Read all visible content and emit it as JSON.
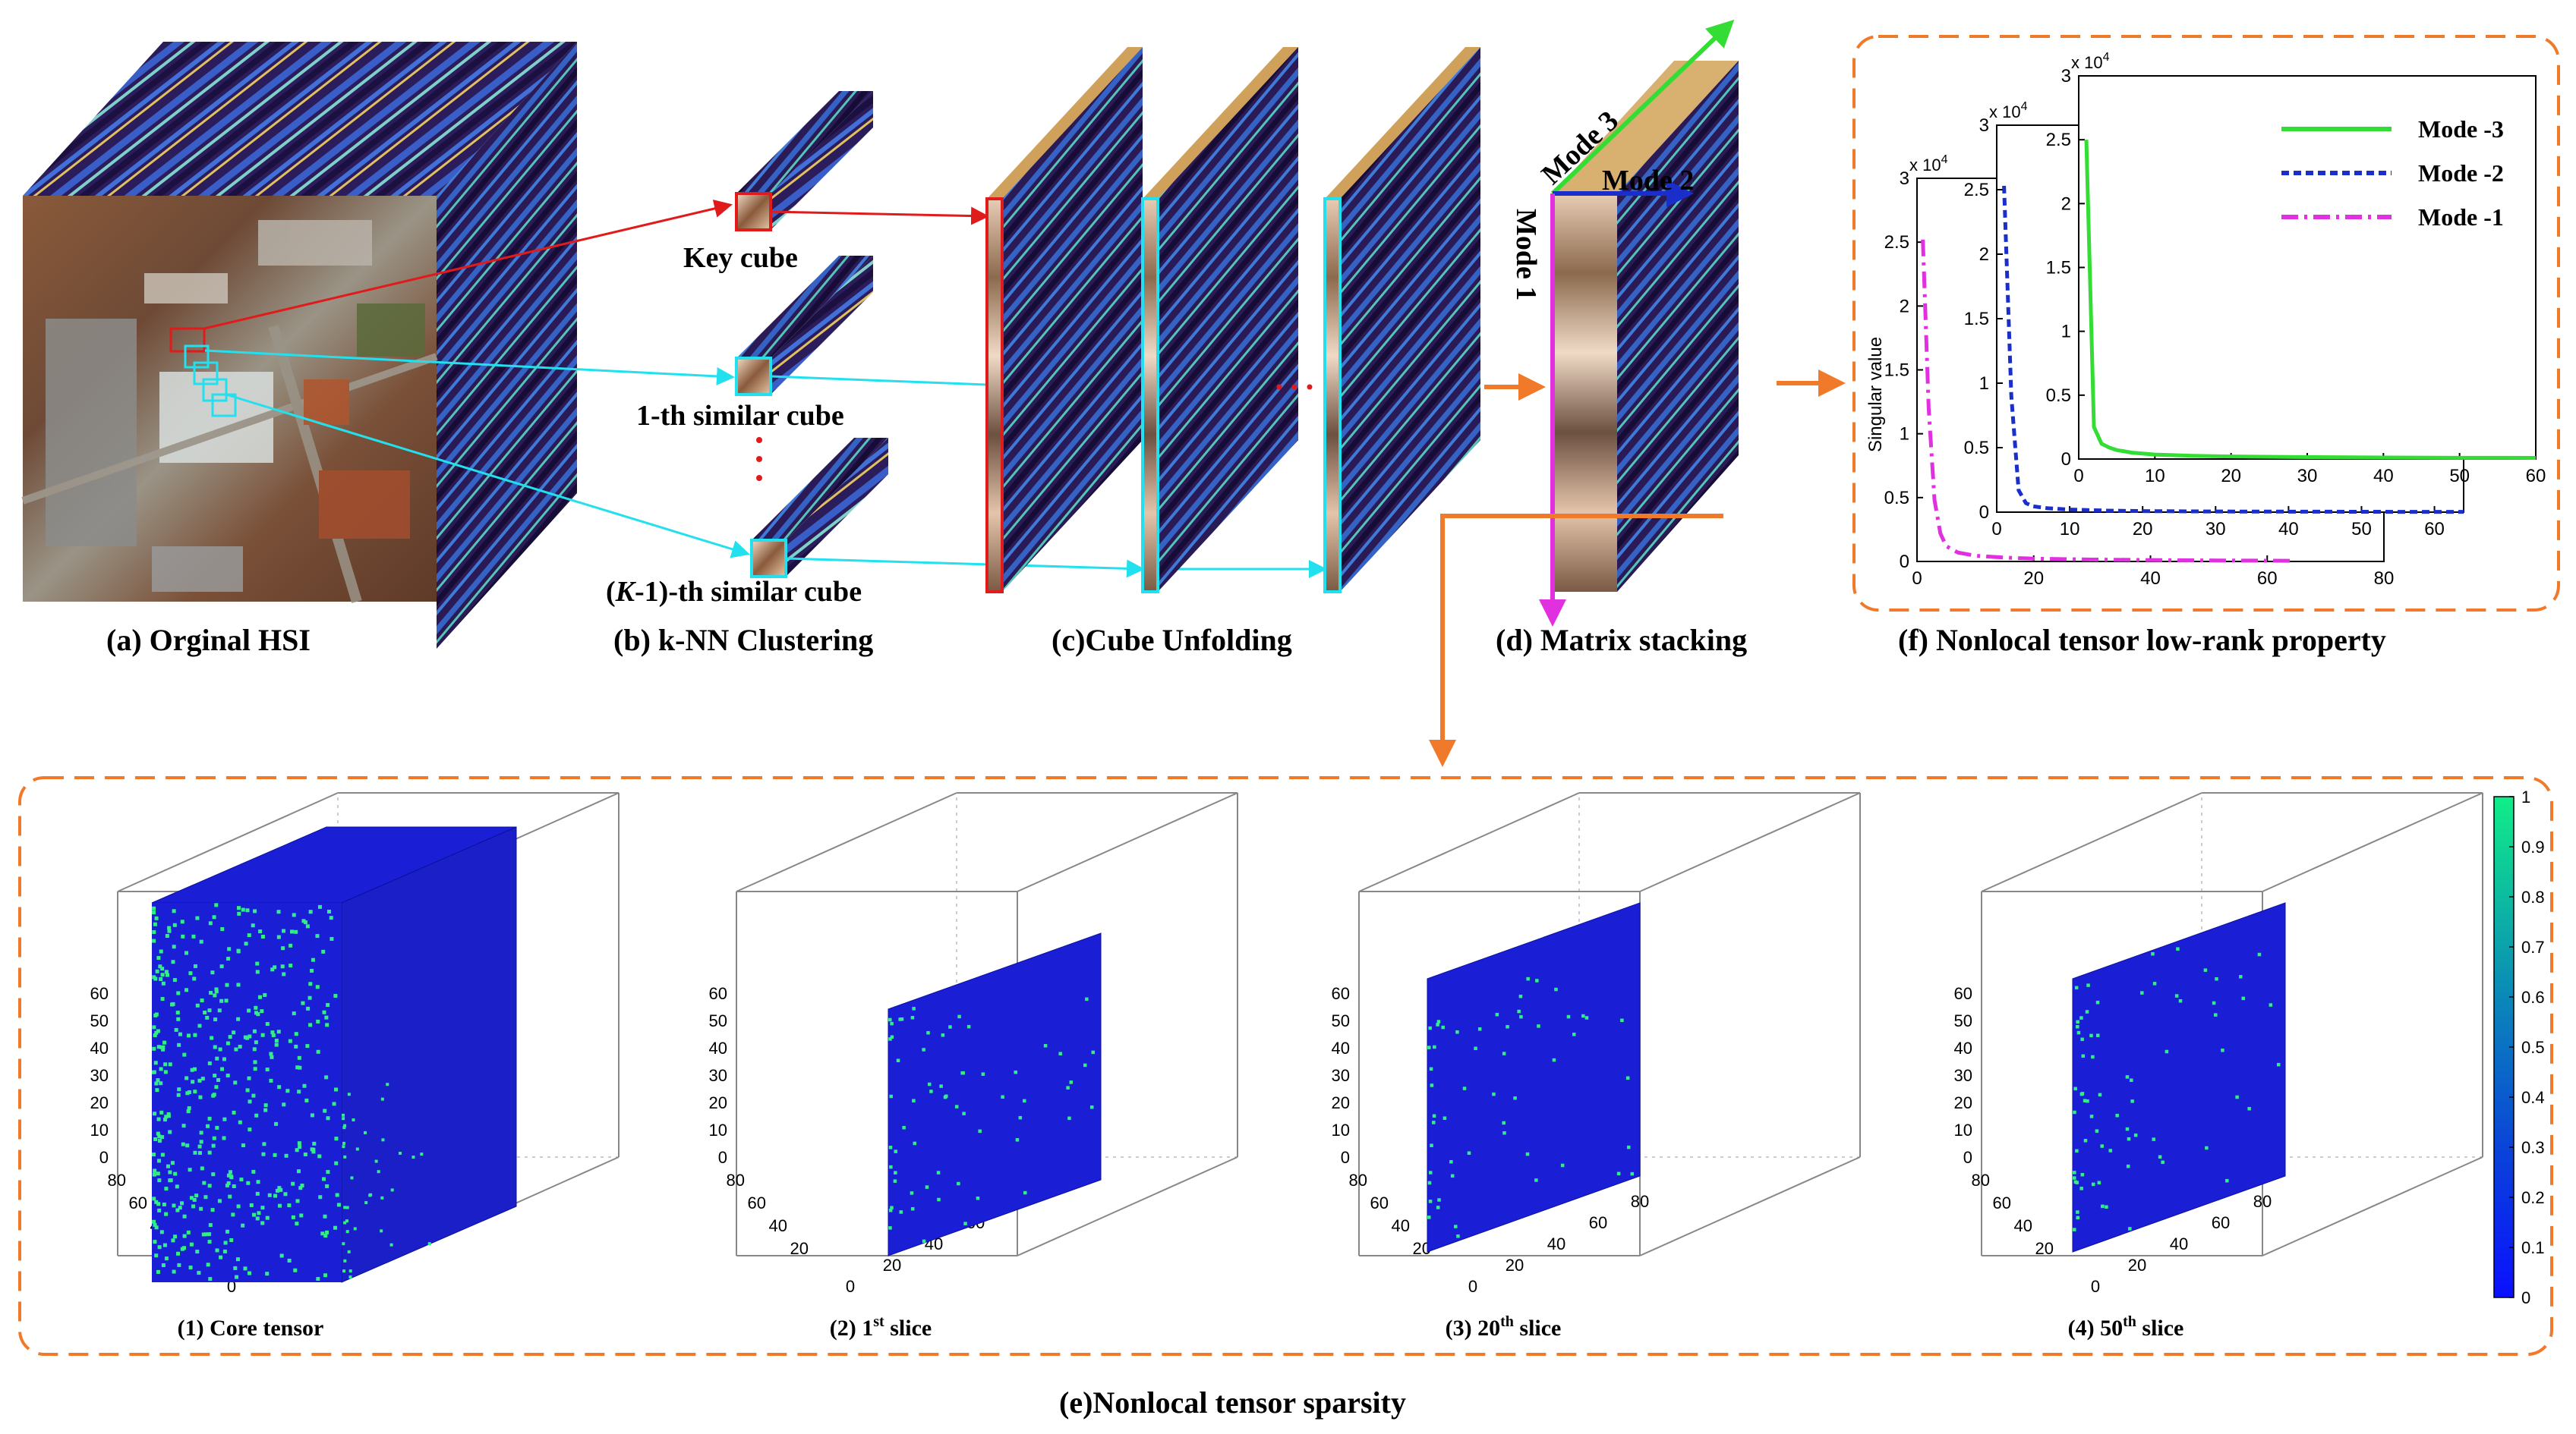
{
  "colors": {
    "cyan": "#22e0ee",
    "red": "#e01b1b",
    "orange": "#f07a2a",
    "mode3": "#33dd33",
    "mode2": "#1a2ecc",
    "mode1": "#e030e0",
    "voxel_background": "#1a1fd6",
    "voxel_active": "#33ee88"
  },
  "captions": {
    "a": "(a) Orginal HSI",
    "b": "(b) k-NN Clustering",
    "c": "(c)Cube Unfolding",
    "d": "(d) Matrix stacking",
    "e": "(e)Nonlocal tensor sparsity",
    "f": "(f) Nonlocal tensor low-rank property"
  },
  "knn": {
    "key": "Key cube",
    "first": "1-th similar cube",
    "kth_prefix": "(",
    "kth_italic": "K",
    "kth_suffix": "-1)-th similar cube"
  },
  "modes": {
    "mode1": "Mode 1",
    "mode2": "Mode 2",
    "mode3": "Mode 3"
  },
  "chart_data": [
    {
      "type": "line",
      "title": "",
      "ylabel": "Singular value",
      "multiplier": "x 10",
      "multiplier_exp": "4",
      "legend": [
        "Mode -3",
        "Mode -2",
        "Mode -1"
      ],
      "panels": [
        {
          "name": "Mode -1",
          "xlim": [
            0,
            80
          ],
          "ylim": [
            0,
            30000
          ],
          "xticks": [
            "0",
            "20",
            "40",
            "60",
            "80"
          ],
          "yticks": [
            "0",
            "0.5",
            "1",
            "1.5",
            "2",
            "2.5",
            "3"
          ],
          "x": [
            1,
            2,
            3,
            4,
            5,
            7,
            10,
            15,
            20,
            30,
            40,
            50,
            60,
            64
          ],
          "y": [
            25200,
            12000,
            4800,
            2200,
            1200,
            700,
            450,
            300,
            220,
            150,
            110,
            80,
            60,
            50
          ]
        },
        {
          "name": "Mode -2",
          "xlim": [
            0,
            64
          ],
          "ylim": [
            0,
            30000
          ],
          "xticks": [
            "0",
            "10",
            "20",
            "30",
            "40",
            "50",
            "60"
          ],
          "yticks": [
            "0",
            "0.5",
            "1",
            "1.5",
            "2",
            "2.5",
            "3"
          ],
          "x": [
            1,
            2,
            3,
            4,
            5,
            7,
            10,
            15,
            20,
            30,
            40,
            50,
            60,
            64
          ],
          "y": [
            25300,
            9000,
            1700,
            700,
            450,
            300,
            200,
            120,
            80,
            50,
            40,
            30,
            20,
            20
          ]
        },
        {
          "name": "Mode -3",
          "xlim": [
            0,
            60
          ],
          "ylim": [
            0,
            30000
          ],
          "xticks": [
            "0",
            "10",
            "20",
            "30",
            "40",
            "50",
            "60"
          ],
          "yticks": [
            "0",
            "0.5",
            "1",
            "1.5",
            "2",
            "2.5",
            "3"
          ],
          "x": [
            1,
            2,
            3,
            4,
            5,
            7,
            10,
            15,
            20,
            30,
            40,
            50,
            60
          ],
          "y": [
            25000,
            2500,
            1200,
            900,
            700,
            500,
            350,
            250,
            200,
            150,
            120,
            100,
            90
          ]
        }
      ]
    },
    {
      "type": "heatmap",
      "panels": [
        {
          "label": "(1) Core tensor",
          "label_sup": "",
          "label_post": "",
          "seed": 11,
          "density": 0.16
        },
        {
          "label": "(2) 1",
          "label_sup": "st",
          "label_post": " slice",
          "seed": 23,
          "density": 0.07
        },
        {
          "label": "(3) 20",
          "label_sup": "th",
          "label_post": " slice",
          "seed": 37,
          "density": 0.06
        },
        {
          "label": "(4) 50",
          "label_sup": "th",
          "label_post": " slice",
          "seed": 51,
          "density": 0.08
        }
      ],
      "z_ticks": [
        "0",
        "10",
        "20",
        "30",
        "40",
        "50",
        "60"
      ],
      "x_ticks": [
        "0",
        "20",
        "40",
        "60",
        "80"
      ],
      "y_ticks": [
        "20",
        "40",
        "60",
        "80"
      ],
      "colorbar_ticks": [
        "0",
        "0.1",
        "0.2",
        "0.3",
        "0.4",
        "0.5",
        "0.6",
        "0.7",
        "0.8",
        "0.9",
        "1"
      ],
      "clim": [
        0,
        1
      ]
    }
  ]
}
